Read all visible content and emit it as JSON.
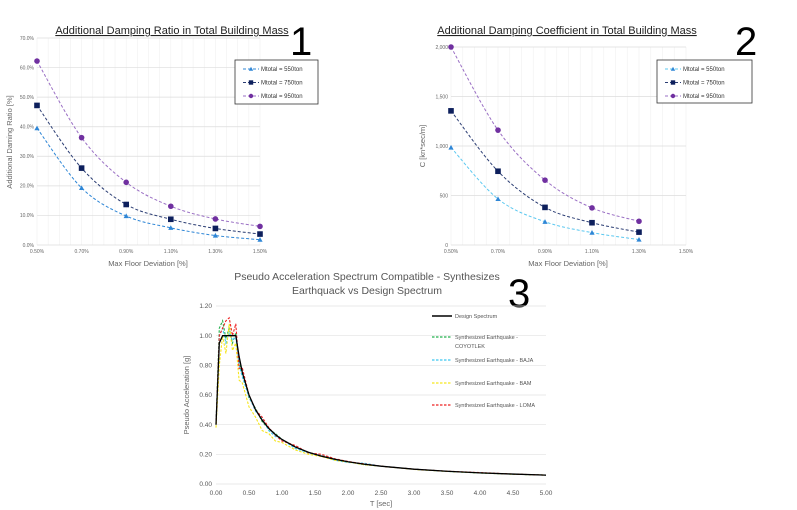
{
  "chart_data": [
    {
      "type": "line",
      "panel_number": "1",
      "title": "Additional Damping Ratio in Total Building Mass",
      "xlabel": "Max Floor Deviation [%]",
      "ylabel": "Additional Daming Ratio [%]",
      "x_ticks": [
        "0.50%",
        "0.70%",
        "0.90%",
        "1.10%",
        "1.30%",
        "1.50%"
      ],
      "y_ticks": [
        "0.0%",
        "10.0%",
        "20.0%",
        "30.0%",
        "40.0%",
        "50.0%",
        "60.0%",
        "70.0%"
      ],
      "ylim": [
        0,
        70
      ],
      "x": [
        0.5,
        0.7,
        0.9,
        1.1,
        1.3,
        1.5
      ],
      "xlim": [
        0.5,
        1.5
      ],
      "legend_position": "top-right",
      "series": [
        {
          "name": "Mtotal = 550ton",
          "marker": "triangle",
          "color": "#2E86D6",
          "line_color": "#2E86D6",
          "values": [
            39.5,
            19.3,
            9.8,
            5.8,
            3.2,
            1.8
          ]
        },
        {
          "name": "Mtotal = 750ton",
          "marker": "square",
          "color": "#0D1F5C",
          "line_color": "#2B3D73",
          "values": [
            47.2,
            26.0,
            13.7,
            8.7,
            5.6,
            3.7
          ]
        },
        {
          "name": "Mtotal = 950ton",
          "marker": "circle",
          "color": "#7030A0",
          "line_color": "#9A6FC4",
          "values": [
            62.2,
            36.3,
            21.2,
            13.1,
            8.8,
            6.3
          ]
        }
      ]
    },
    {
      "type": "line",
      "panel_number": "2",
      "title": "Additional Damping Coefficient in Total Building Mass",
      "xlabel": "Max Floor Deviation [%]",
      "ylabel": "C [kn*sec/m]",
      "x_ticks": [
        "0.50%",
        "0.70%",
        "0.90%",
        "1.10%",
        "1.30%",
        "1.50%"
      ],
      "y_ticks": [
        "0",
        "500",
        "1,000",
        "1,500",
        "2,000"
      ],
      "ylim": [
        0,
        2000
      ],
      "x": [
        0.5,
        0.7,
        0.9,
        1.1,
        1.3
      ],
      "xlim": [
        0.5,
        1.5
      ],
      "legend_position": "top-right",
      "series": [
        {
          "name": "Mtotal = 550ton",
          "marker": "triangle",
          "color": "#2E86D6",
          "line_color": "#5BC8F0",
          "values": [
            985,
            465,
            235,
            125,
            55
          ]
        },
        {
          "name": "Mtotal = 750ton",
          "marker": "square",
          "color": "#0D1F5C",
          "line_color": "#2B3D73",
          "values": [
            1355,
            745,
            380,
            225,
            130
          ]
        },
        {
          "name": "Mtotal = 950ton",
          "marker": "circle",
          "color": "#7030A0",
          "line_color": "#9A6FC4",
          "values": [
            2000,
            1160,
            655,
            375,
            240
          ]
        }
      ]
    },
    {
      "type": "line",
      "panel_number": "3",
      "title": [
        "Pseudo Acceleration Spectrum Compatible  - Synthesizes",
        "Earthquack vs Design Spectrum"
      ],
      "xlabel": "T [sec]",
      "ylabel": "Pseudo Acceleration [g]",
      "x_ticks": [
        "0.00",
        "0.50",
        "1.00",
        "1.50",
        "2.00",
        "2.50",
        "3.00",
        "3.50",
        "4.00",
        "4.50",
        "5.00"
      ],
      "y_ticks": [
        "0.00",
        "0.20",
        "0.40",
        "0.60",
        "0.80",
        "1.00",
        "1.20"
      ],
      "xlim": [
        0,
        5
      ],
      "ylim": [
        0,
        1.2
      ],
      "legend_position": "right",
      "x": [
        0,
        0.05,
        0.1,
        0.15,
        0.2,
        0.25,
        0.3,
        0.35,
        0.4,
        0.5,
        0.6,
        0.7,
        0.8,
        0.9,
        1.0,
        1.2,
        1.4,
        1.6,
        1.8,
        2.0,
        2.25,
        2.5,
        3.0,
        3.5,
        4.0,
        4.5,
        5.0
      ],
      "series": [
        {
          "name": "Design Spectrum",
          "style": "solid",
          "color": "#000000",
          "values": [
            0.4,
            0.95,
            1.0,
            1.0,
            1.0,
            1.0,
            1.0,
            0.86,
            0.75,
            0.6,
            0.5,
            0.43,
            0.375,
            0.333,
            0.3,
            0.25,
            0.214,
            0.1875,
            0.167,
            0.15,
            0.133,
            0.12,
            0.1,
            0.086,
            0.075,
            0.067,
            0.06
          ]
        },
        {
          "name": "Synthesized Earthquake - COYOTLEK",
          "style": "dashed",
          "color": "#22B14C",
          "values": [
            0.4,
            1.05,
            1.1,
            0.98,
            1.05,
            0.95,
            1.02,
            0.82,
            0.74,
            0.58,
            0.51,
            0.42,
            0.37,
            0.34,
            0.3,
            0.25,
            0.21,
            0.19,
            0.165,
            0.15,
            0.13,
            0.12,
            0.1,
            0.085,
            0.074,
            0.066,
            0.06
          ]
        },
        {
          "name": "Synthesized Earthquake - BAJA",
          "style": "dashed",
          "color": "#3CC8F0",
          "values": [
            0.4,
            1.0,
            1.05,
            0.95,
            1.02,
            0.97,
            0.99,
            0.8,
            0.72,
            0.59,
            0.49,
            0.44,
            0.36,
            0.32,
            0.3,
            0.24,
            0.21,
            0.19,
            0.16,
            0.145,
            0.14,
            0.12,
            0.1,
            0.085,
            0.076,
            0.066,
            0.06
          ]
        },
        {
          "name": "Synthesized Earthquake - BAM",
          "style": "dashed",
          "color": "#F5E61E",
          "values": [
            0.38,
            0.8,
            1.0,
            0.88,
            1.08,
            0.9,
            0.95,
            0.7,
            0.68,
            0.52,
            0.45,
            0.36,
            0.34,
            0.29,
            0.28,
            0.23,
            0.2,
            0.185,
            0.16,
            0.148,
            0.13,
            0.12,
            0.098,
            0.085,
            0.075,
            0.066,
            0.06
          ]
        },
        {
          "name": "Synthesized Earthquake - LOMA",
          "style": "dashed",
          "color": "#EE2222",
          "values": [
            0.4,
            1.0,
            1.05,
            1.1,
            1.12,
            1.0,
            1.08,
            0.78,
            0.78,
            0.6,
            0.5,
            0.45,
            0.38,
            0.33,
            0.29,
            0.26,
            0.21,
            0.2,
            0.17,
            0.152,
            0.135,
            0.12,
            0.1,
            0.086,
            0.077,
            0.067,
            0.06
          ]
        }
      ]
    }
  ]
}
